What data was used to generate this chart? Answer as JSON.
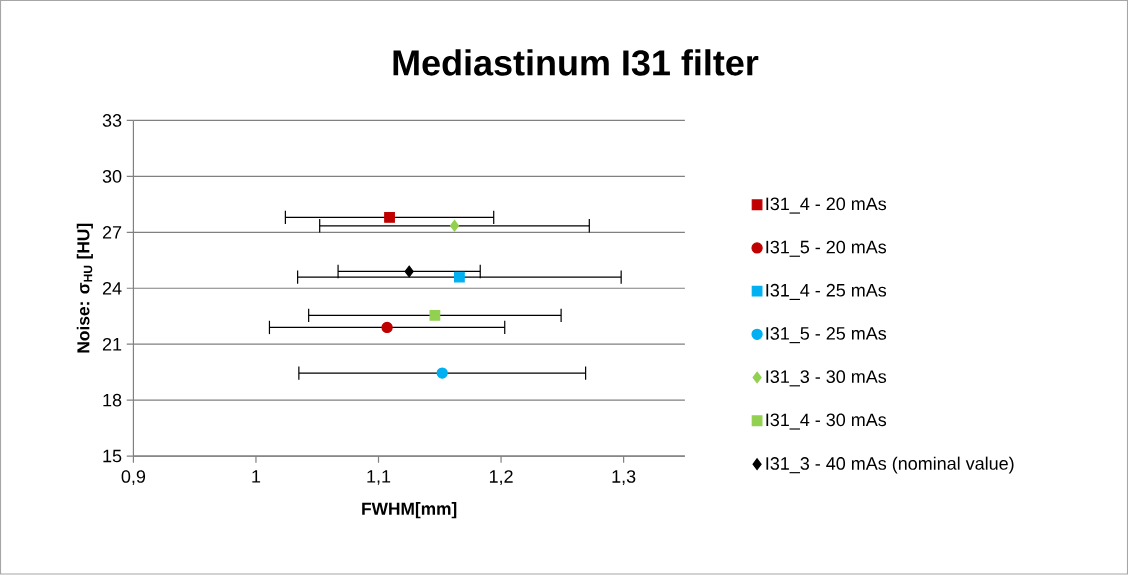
{
  "chart_data": {
    "type": "scatter",
    "title": "Mediastinum I31 filter",
    "xlabel": "FWHM[mm]",
    "ylabel": "Noise: σ$_{HU}$ [HU]",
    "xlim": [
      0.9,
      1.35
    ],
    "xticks": [
      {
        "value": 0.9,
        "label": "0,9"
      },
      1,
      {
        "value": 1.1,
        "label": "1,1"
      },
      {
        "value": 1.2,
        "label": "1,2"
      },
      {
        "value": 1.3,
        "label": "1,3"
      }
    ],
    "ylim": [
      15,
      33
    ],
    "yticks": [
      15,
      18,
      21,
      24,
      27,
      30,
      33
    ],
    "grid": "y",
    "legend": "right",
    "series": [
      {
        "name": "I31_4 - 20 mAs",
        "color": "#c00000",
        "marker": "square",
        "x": [
          1.109
        ],
        "values": [
          27.8
        ],
        "xerrors": [
          0.085
        ]
      },
      {
        "name": "I31_5 - 20 mAs",
        "color": "#c00000",
        "marker": "circle",
        "x": [
          1.107
        ],
        "values": [
          21.9
        ],
        "xerrors": [
          0.096
        ]
      },
      {
        "name": "I31_4 - 25 mAs",
        "color": "#00b0f0",
        "marker": "square",
        "x": [
          1.166
        ],
        "values": [
          24.6
        ],
        "xerrors": [
          0.132
        ]
      },
      {
        "name": "I31_5 - 25 mAs",
        "color": "#00b0f0",
        "marker": "circle",
        "x": [
          1.152
        ],
        "values": [
          19.45
        ],
        "xerrors": [
          0.117
        ]
      },
      {
        "name": "I31_3 - 30 mAs",
        "color": "#92d050",
        "marker": "diamond",
        "x": [
          1.162
        ],
        "values": [
          27.35
        ],
        "xerrors": [
          0.11
        ]
      },
      {
        "name": "I31_4 - 30 mAs",
        "color": "#92d050",
        "marker": "square",
        "x": [
          1.146
        ],
        "values": [
          22.55
        ],
        "xerrors": [
          0.103
        ]
      },
      {
        "name": "I31_3 - 40 mAs (nominal value)",
        "color": "#000000",
        "marker": "diamond",
        "x": [
          1.125
        ],
        "values": [
          24.9
        ],
        "xerrors": [
          0.058
        ]
      }
    ]
  }
}
